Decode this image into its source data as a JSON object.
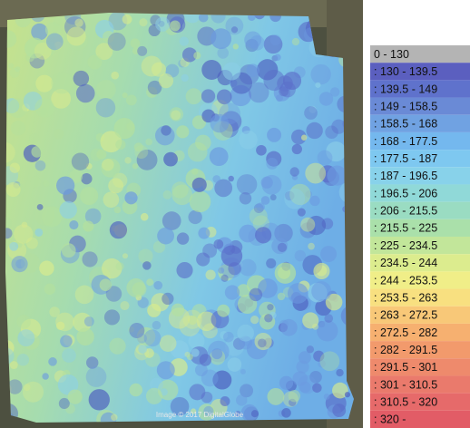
{
  "map": {
    "attribution": "Image © 2017 DigitalGlobe"
  },
  "legend": {
    "items": [
      {
        "label": "0 - 130",
        "color": "#b4b4b4"
      },
      {
        "label": ": 130 - 139.5",
        "color": "#5b5fbf"
      },
      {
        "label": ": 139.5 - 149",
        "color": "#5f72cc"
      },
      {
        "label": ": 149 - 158.5",
        "color": "#6a8ad6"
      },
      {
        "label": ": 158.5 - 168",
        "color": "#70a2e2"
      },
      {
        "label": ": 168 - 177.5",
        "color": "#74b8ee"
      },
      {
        "label": ": 177.5 - 187",
        "color": "#7ec8f0"
      },
      {
        "label": ": 187 - 196.5",
        "color": "#88d2ea"
      },
      {
        "label": ": 196.5 - 206",
        "color": "#90d9d8"
      },
      {
        "label": ": 206 - 215.5",
        "color": "#9adcc2"
      },
      {
        "label": ": 215.5 - 225",
        "color": "#aae0aa"
      },
      {
        "label": ": 225 - 234.5",
        "color": "#c2e69a"
      },
      {
        "label": ": 234.5 - 244",
        "color": "#dcec8e"
      },
      {
        "label": ": 244 - 253.5",
        "color": "#f0ee88"
      },
      {
        "label": ": 253.5 - 263",
        "color": "#f8e080"
      },
      {
        "label": ": 263 - 272.5",
        "color": "#f8c878"
      },
      {
        "label": ": 272.5 - 282",
        "color": "#f6b070"
      },
      {
        "label": ": 282 - 291.5",
        "color": "#f29a6c"
      },
      {
        "label": ": 291.5 - 301",
        "color": "#ee8a6c"
      },
      {
        "label": ": 301 - 310.5",
        "color": "#ea7a6c"
      },
      {
        "label": ": 310.5 - 320",
        "color": "#e66a6a"
      },
      {
        "label": ": 320 -",
        "color": "#e25c66"
      }
    ]
  }
}
